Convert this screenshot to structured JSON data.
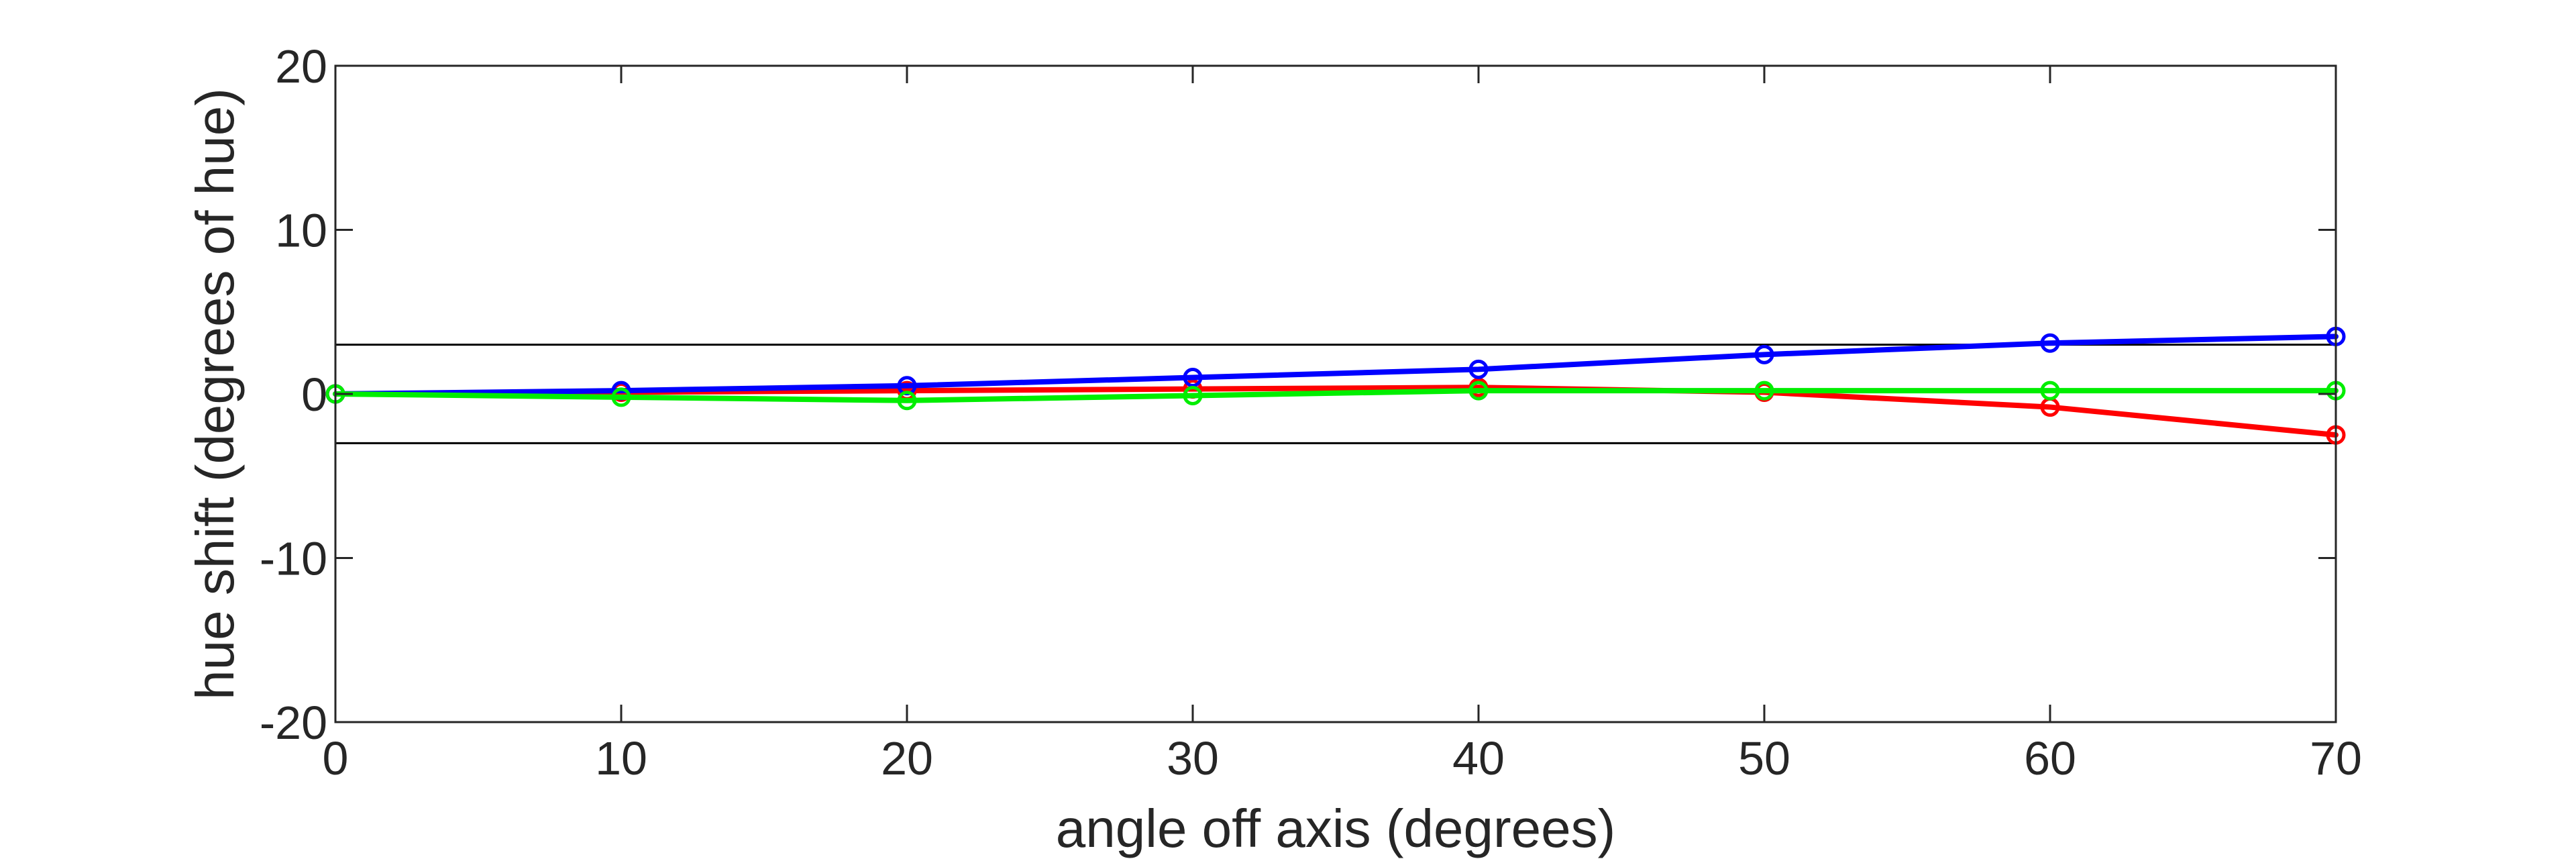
{
  "chart_data": {
    "type": "line",
    "title": "",
    "xlabel": "angle off axis (degrees)",
    "ylabel": "hue shift (degrees of hue)",
    "xlim": [
      0,
      70
    ],
    "ylim": [
      -20,
      20
    ],
    "xticks": [
      "0",
      "10",
      "20",
      "30",
      "40",
      "50",
      "60",
      "70"
    ],
    "yticks": [
      "20",
      "10",
      "0",
      "-10",
      "-20"
    ],
    "grid": false,
    "legend": "none",
    "x": [
      0,
      10,
      20,
      30,
      40,
      50,
      60,
      70
    ],
    "reference_lines": [
      3,
      -3
    ],
    "series": [
      {
        "color": "#ff0000",
        "values": [
          0,
          0.1,
          0.2,
          0.3,
          0.4,
          0.1,
          -0.8,
          -2.5
        ]
      },
      {
        "color": "#0000ff",
        "values": [
          0,
          0.2,
          0.5,
          1.0,
          1.5,
          2.4,
          3.1,
          3.5
        ]
      },
      {
        "color": "#00ee00",
        "values": [
          0,
          -0.2,
          -0.4,
          -0.1,
          0.2,
          0.2,
          0.2,
          0.2
        ]
      }
    ]
  }
}
